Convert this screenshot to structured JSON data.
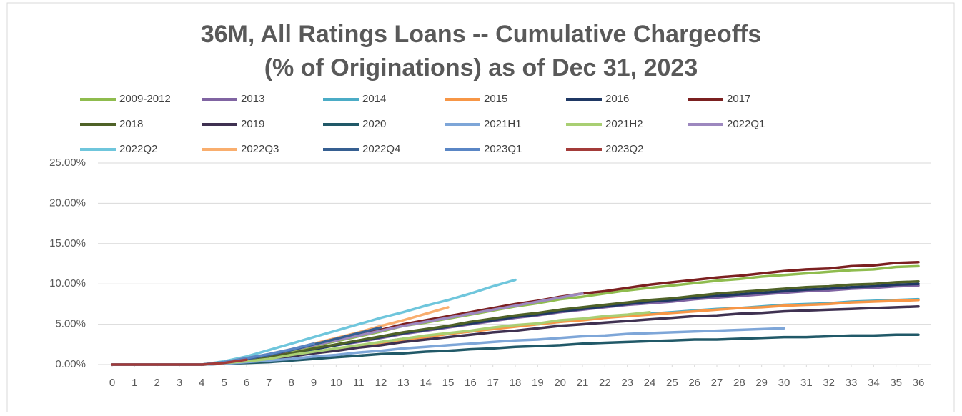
{
  "chart_data": {
    "type": "line",
    "title": [
      "36M, All Ratings Loans -- Cumulative Chargeoffs",
      "(% of Originations) as of Dec 31, 2023"
    ],
    "x": [
      0,
      1,
      2,
      3,
      4,
      5,
      6,
      7,
      8,
      9,
      10,
      11,
      12,
      13,
      14,
      15,
      16,
      17,
      18,
      19,
      20,
      21,
      22,
      23,
      24,
      25,
      26,
      27,
      28,
      29,
      30,
      31,
      32,
      33,
      34,
      35,
      36
    ],
    "xlim": [
      0,
      36
    ],
    "xticks": [
      0,
      1,
      2,
      3,
      4,
      5,
      6,
      7,
      8,
      9,
      10,
      11,
      12,
      13,
      14,
      15,
      16,
      17,
      18,
      19,
      20,
      21,
      22,
      23,
      24,
      25,
      26,
      27,
      28,
      29,
      30,
      31,
      32,
      33,
      34,
      35,
      36
    ],
    "ylim": [
      0,
      25
    ],
    "yticks": [
      {
        "value": 0,
        "label": "0.00%"
      },
      {
        "value": 5,
        "label": "5.00%"
      },
      {
        "value": 10,
        "label": "10.00%"
      },
      {
        "value": 15,
        "label": "15.00%"
      },
      {
        "value": 20,
        "label": "20.00%"
      },
      {
        "value": 25,
        "label": "25.00%"
      }
    ],
    "grid": true,
    "legend": "top",
    "series": [
      {
        "name": "2009-2012",
        "color": "#8fbc4e",
        "values": [
          0,
          0,
          0,
          0,
          0,
          0.2,
          0.6,
          1.1,
          1.7,
          2.3,
          2.9,
          3.5,
          4.1,
          4.8,
          5.2,
          5.7,
          6.2,
          6.7,
          7.2,
          7.6,
          8.1,
          8.4,
          8.8,
          9.2,
          9.5,
          9.8,
          10.1,
          10.4,
          10.6,
          10.9,
          11.1,
          11.3,
          11.5,
          11.7,
          11.8,
          12.1,
          12.2
        ]
      },
      {
        "name": "2013",
        "color": "#8064a2",
        "values": [
          0,
          0,
          0,
          0,
          0,
          0.2,
          0.5,
          0.9,
          1.4,
          1.9,
          2.4,
          2.8,
          3.3,
          3.8,
          4.2,
          4.6,
          5.0,
          5.4,
          5.8,
          6.1,
          6.5,
          6.8,
          7.1,
          7.4,
          7.6,
          7.8,
          8.1,
          8.3,
          8.5,
          8.7,
          8.9,
          9.1,
          9.2,
          9.4,
          9.5,
          9.7,
          9.8
        ]
      },
      {
        "name": "2014",
        "color": "#4bacc6",
        "values": [
          0,
          0,
          0,
          0,
          0,
          0.2,
          0.4,
          0.7,
          1.1,
          1.5,
          1.9,
          2.3,
          2.8,
          3.2,
          3.5,
          3.8,
          4.1,
          4.5,
          4.8,
          5.0,
          5.3,
          5.6,
          5.8,
          6.1,
          6.3,
          6.5,
          6.7,
          6.9,
          7.0,
          7.2,
          7.4,
          7.5,
          7.6,
          7.8,
          7.9,
          8.0,
          8.1
        ]
      },
      {
        "name": "2015",
        "color": "#f79646",
        "values": [
          0,
          0,
          0,
          0,
          0,
          0.2,
          0.4,
          0.7,
          1.1,
          1.5,
          1.9,
          2.3,
          2.7,
          3.1,
          3.4,
          3.8,
          4.1,
          4.4,
          4.7,
          5.0,
          5.3,
          5.5,
          5.8,
          6.0,
          6.2,
          6.4,
          6.6,
          6.8,
          7.0,
          7.1,
          7.3,
          7.4,
          7.5,
          7.7,
          7.8,
          7.9,
          8.0
        ]
      },
      {
        "name": "2016",
        "color": "#1f3864",
        "values": [
          0,
          0,
          0,
          0,
          0,
          0.2,
          0.5,
          0.9,
          1.4,
          1.9,
          2.4,
          2.9,
          3.4,
          3.9,
          4.3,
          4.7,
          5.1,
          5.5,
          5.9,
          6.2,
          6.6,
          6.9,
          7.2,
          7.5,
          7.8,
          8.0,
          8.3,
          8.5,
          8.7,
          8.9,
          9.1,
          9.3,
          9.4,
          9.6,
          9.7,
          9.9,
          10.0
        ]
      },
      {
        "name": "2017",
        "color": "#7b2020",
        "values": [
          0,
          0,
          0,
          0,
          0,
          0.3,
          0.6,
          1.1,
          1.8,
          2.4,
          3.0,
          3.7,
          4.3,
          5.0,
          5.5,
          6.0,
          6.5,
          7.0,
          7.5,
          7.9,
          8.4,
          8.8,
          9.1,
          9.5,
          9.9,
          10.2,
          10.5,
          10.8,
          11.0,
          11.3,
          11.6,
          11.8,
          11.9,
          12.2,
          12.3,
          12.6,
          12.7
        ]
      },
      {
        "name": "2018",
        "color": "#4f6228",
        "values": [
          0,
          0,
          0,
          0,
          0,
          0.2,
          0.5,
          0.9,
          1.4,
          2.0,
          2.5,
          3.0,
          3.5,
          4.0,
          4.4,
          4.8,
          5.3,
          5.7,
          6.1,
          6.4,
          6.8,
          7.1,
          7.4,
          7.7,
          8.0,
          8.2,
          8.5,
          8.8,
          9.0,
          9.2,
          9.4,
          9.6,
          9.7,
          9.9,
          10.0,
          10.2,
          10.3
        ]
      },
      {
        "name": "2019",
        "color": "#3f3151",
        "values": [
          0,
          0,
          0,
          0,
          0,
          0.1,
          0.4,
          0.6,
          1.0,
          1.4,
          1.7,
          2.1,
          2.4,
          2.8,
          3.1,
          3.4,
          3.7,
          4.0,
          4.2,
          4.5,
          4.8,
          5.0,
          5.2,
          5.4,
          5.6,
          5.8,
          6.0,
          6.1,
          6.3,
          6.4,
          6.6,
          6.7,
          6.8,
          6.9,
          7.0,
          7.1,
          7.2
        ]
      },
      {
        "name": "2020",
        "color": "#215968",
        "values": [
          0,
          0,
          0,
          0,
          0,
          0.1,
          0.2,
          0.3,
          0.5,
          0.7,
          0.9,
          1.1,
          1.3,
          1.4,
          1.6,
          1.7,
          1.9,
          2.0,
          2.2,
          2.3,
          2.4,
          2.6,
          2.7,
          2.8,
          2.9,
          3.0,
          3.1,
          3.1,
          3.2,
          3.3,
          3.4,
          3.4,
          3.5,
          3.6,
          3.6,
          3.7,
          3.7
        ]
      },
      {
        "name": "2021H1",
        "color": "#7ea6d8",
        "values": [
          0,
          0,
          0,
          0,
          0,
          0.1,
          0.3,
          0.5,
          0.7,
          1.0,
          1.2,
          1.5,
          1.7,
          2.0,
          2.2,
          2.4,
          2.6,
          2.8,
          3.0,
          3.1,
          3.3,
          3.5,
          3.6,
          3.8,
          3.9,
          4.0,
          4.1,
          4.2,
          4.3,
          4.4,
          4.5,
          null,
          null,
          null,
          null,
          null,
          null
        ]
      },
      {
        "name": "2021H2",
        "color": "#a9cf73",
        "values": [
          0,
          0,
          0,
          0,
          0,
          0.2,
          0.4,
          0.7,
          1.2,
          1.6,
          2.0,
          2.4,
          2.8,
          3.2,
          3.6,
          3.9,
          4.2,
          4.6,
          4.9,
          5.1,
          5.5,
          5.7,
          6.0,
          6.2,
          6.5,
          null,
          null,
          null,
          null,
          null,
          null,
          null,
          null,
          null,
          null,
          null,
          null
        ]
      },
      {
        "name": "2022Q1",
        "color": "#9d88bf",
        "values": [
          0,
          0,
          0,
          0,
          0,
          0.3,
          0.7,
          1.2,
          1.8,
          2.4,
          3.0,
          3.6,
          4.2,
          4.8,
          5.3,
          5.8,
          6.3,
          6.8,
          7.3,
          7.8,
          8.3,
          8.8,
          null,
          null,
          null,
          null,
          null,
          null,
          null,
          null,
          null,
          null,
          null,
          null,
          null,
          null,
          null
        ]
      },
      {
        "name": "2022Q2",
        "color": "#6fc6dc",
        "values": [
          0,
          0,
          0,
          0,
          0,
          0.4,
          1.0,
          1.8,
          2.6,
          3.4,
          4.2,
          5.0,
          5.8,
          6.5,
          7.3,
          8.0,
          8.8,
          9.7,
          10.5,
          null,
          null,
          null,
          null,
          null,
          null,
          null,
          null,
          null,
          null,
          null,
          null,
          null,
          null,
          null,
          null,
          null,
          null
        ]
      },
      {
        "name": "2022Q3",
        "color": "#f9ae6e",
        "values": [
          0,
          0,
          0,
          0,
          0,
          0.3,
          0.8,
          1.3,
          1.9,
          2.6,
          3.3,
          4.0,
          4.8,
          5.5,
          6.3,
          7.1,
          null,
          null,
          null,
          null,
          null,
          null,
          null,
          null,
          null,
          null,
          null,
          null,
          null,
          null,
          null,
          null,
          null,
          null,
          null,
          null,
          null
        ]
      },
      {
        "name": "2022Q4",
        "color": "#365f91",
        "values": [
          0,
          0,
          0,
          0,
          0,
          0.3,
          0.7,
          1.2,
          1.8,
          2.5,
          3.2,
          3.9,
          4.6,
          null,
          null,
          null,
          null,
          null,
          null,
          null,
          null,
          null,
          null,
          null,
          null,
          null,
          null,
          null,
          null,
          null,
          null,
          null,
          null,
          null,
          null,
          null,
          null
        ]
      },
      {
        "name": "2023Q1",
        "color": "#5a86c5",
        "values": [
          0,
          0,
          0,
          0,
          0,
          0.3,
          0.8,
          1.3,
          1.9,
          2.6,
          null,
          null,
          null,
          null,
          null,
          null,
          null,
          null,
          null,
          null,
          null,
          null,
          null,
          null,
          null,
          null,
          null,
          null,
          null,
          null,
          null,
          null,
          null,
          null,
          null,
          null,
          null
        ]
      },
      {
        "name": "2023Q2",
        "color": "#a33b39",
        "values": [
          0,
          0,
          0,
          0,
          0,
          0.2,
          0.6,
          null,
          null,
          null,
          null,
          null,
          null,
          null,
          null,
          null,
          null,
          null,
          null,
          null,
          null,
          null,
          null,
          null,
          null,
          null,
          null,
          null,
          null,
          null,
          null,
          null,
          null,
          null,
          null,
          null,
          null
        ]
      }
    ]
  }
}
